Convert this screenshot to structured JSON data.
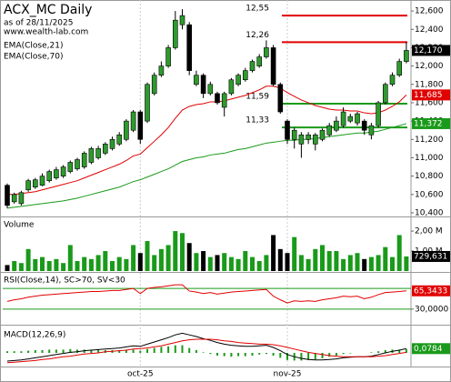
{
  "chart_data": [
    {
      "type": "candlestick",
      "title": "ACX_MC Daily",
      "subtitle": "as of 28/11/2025",
      "watermark": "www.wealth-lab.com",
      "categories": [
        null,
        null,
        null,
        null,
        null,
        null,
        null,
        null,
        null,
        null,
        null,
        null,
        null,
        null,
        null,
        null,
        null,
        null,
        null,
        "oct-25",
        null,
        null,
        null,
        null,
        null,
        null,
        null,
        null,
        null,
        null,
        null,
        null,
        null,
        null,
        null,
        null,
        null,
        null,
        null,
        null,
        "nov-25",
        null,
        null,
        null,
        null,
        null,
        null,
        null,
        null,
        null,
        null,
        null,
        null,
        null,
        null,
        null,
        null,
        null
      ],
      "open": [
        10700,
        10520,
        10500,
        10650,
        10680,
        10700,
        10750,
        10780,
        10800,
        10850,
        10880,
        10900,
        10950,
        11000,
        11050,
        11100,
        11150,
        11200,
        11300,
        11500,
        11400,
        11700,
        11900,
        12000,
        12200,
        12450,
        12450,
        11800,
        11900,
        11700,
        11700,
        11550,
        11700,
        11800,
        11850,
        11950,
        12000,
        12100,
        12200,
        11800,
        11400,
        11200,
        11150,
        11200,
        11150,
        11200,
        11250,
        11300,
        11350,
        11400,
        11380,
        11400,
        11250,
        11350,
        11600,
        11800,
        11900,
        12050
      ],
      "high": [
        10720,
        10620,
        10640,
        10770,
        10780,
        10830,
        10870,
        10900,
        10920,
        10970,
        11000,
        11070,
        11120,
        11130,
        11170,
        11230,
        11280,
        11420,
        11520,
        11520,
        11820,
        11930,
        12050,
        12230,
        12600,
        12620,
        12480,
        11950,
        11920,
        11830,
        11720,
        11720,
        11870,
        11920,
        11980,
        12070,
        12130,
        12280,
        12230,
        11820,
        11420,
        11330,
        11280,
        11280,
        11270,
        11320,
        11380,
        11450,
        11550,
        11480,
        11500,
        11420,
        11380,
        11620,
        11820,
        11930,
        12080,
        12260
      ],
      "low": [
        10450,
        10500,
        10480,
        10630,
        10660,
        10690,
        10730,
        10760,
        10780,
        10830,
        10860,
        10880,
        10930,
        10980,
        11030,
        11080,
        11130,
        11180,
        11280,
        11150,
        11380,
        11680,
        11880,
        11980,
        12180,
        12400,
        11900,
        11780,
        11650,
        11680,
        11580,
        11450,
        11680,
        11780,
        11830,
        11930,
        11980,
        12080,
        11780,
        11480,
        11150,
        11100,
        11000,
        11150,
        11080,
        11180,
        11230,
        11280,
        11330,
        11380,
        11350,
        11250,
        11200,
        11330,
        11580,
        11780,
        11880,
        12030
      ],
      "close": [
        10480,
        10600,
        10620,
        10750,
        10760,
        10800,
        10850,
        10870,
        10900,
        10950,
        10980,
        11050,
        11100,
        11100,
        11150,
        11200,
        11250,
        11400,
        11500,
        11200,
        11800,
        11900,
        12000,
        12200,
        12500,
        12550,
        11950,
        11900,
        11700,
        11800,
        11600,
        11700,
        11850,
        11900,
        11950,
        12050,
        12100,
        12200,
        11800,
        11500,
        11200,
        11300,
        11250,
        11250,
        11250,
        11300,
        11350,
        11400,
        11500,
        11450,
        11480,
        11300,
        11350,
        11600,
        11800,
        11900,
        12050,
        12170
      ],
      "close_last_label": "12,170",
      "up_color": "#2e9a2e",
      "down_color": "#000000",
      "ylim": [
        10370,
        12720
      ],
      "yticks": [
        {
          "value": 12600,
          "label": "12,600"
        },
        {
          "value": 12400,
          "label": "12,400"
        },
        {
          "value": 12200,
          "label": "12,200"
        },
        {
          "value": 12000,
          "label": "12,000"
        },
        {
          "value": 11800,
          "label": "11,800"
        },
        {
          "value": 11600,
          "label": "11,600"
        },
        {
          "value": 11400,
          "label": "11,400"
        },
        {
          "value": 11200,
          "label": "11,200"
        },
        {
          "value": 11000,
          "label": "11,000"
        },
        {
          "value": 10800,
          "label": "10,800"
        },
        {
          "value": 10600,
          "label": "10,600"
        },
        {
          "value": 10400,
          "label": "10,400"
        }
      ],
      "levels": [
        {
          "value": 12550,
          "label": "12,55",
          "color": "#e00000"
        },
        {
          "value": 12260,
          "label": "12,26",
          "color": "#e00000"
        },
        {
          "value": 11590,
          "label": "11,59",
          "color": "#1a9a1a"
        },
        {
          "value": 11330,
          "label": "11,33",
          "color": "#1a9a1a"
        }
      ],
      "series": [
        {
          "name": "EMA(Close,21)",
          "color": "#e00000",
          "last_label": "11,685",
          "values": [
            10600,
            10600,
            10610,
            10620,
            10630,
            10650,
            10670,
            10690,
            10710,
            10730,
            10750,
            10780,
            10810,
            10840,
            10870,
            10900,
            10930,
            10970,
            11020,
            11040,
            11110,
            11180,
            11250,
            11330,
            11430,
            11520,
            11560,
            11580,
            11590,
            11610,
            11610,
            11620,
            11640,
            11660,
            11680,
            11710,
            11740,
            11780,
            11780,
            11760,
            11710,
            11670,
            11630,
            11600,
            11570,
            11550,
            11530,
            11520,
            11520,
            11510,
            11510,
            11490,
            11480,
            11490,
            11520,
            11560,
            11610,
            11685
          ]
        },
        {
          "name": "EMA(Close,70)",
          "color": "#1a9a1a",
          "last_label": "11,372",
          "values": [
            10450,
            10460,
            10470,
            10480,
            10490,
            10500,
            10510,
            10520,
            10530,
            10545,
            10560,
            10580,
            10600,
            10620,
            10640,
            10660,
            10680,
            10710,
            10740,
            10760,
            10790,
            10820,
            10850,
            10880,
            10920,
            10960,
            10980,
            11000,
            11010,
            11030,
            11040,
            11050,
            11070,
            11090,
            11100,
            11120,
            11140,
            11160,
            11170,
            11180,
            11190,
            11190,
            11200,
            11200,
            11210,
            11220,
            11230,
            11240,
            11250,
            11260,
            11270,
            11270,
            11280,
            11290,
            11310,
            11330,
            11350,
            11372
          ]
        }
      ]
    },
    {
      "type": "bar",
      "title": "Volume",
      "color": "#1a9a1a",
      "values": [
        300000,
        500000,
        400000,
        1100000,
        600000,
        700000,
        500000,
        600000,
        400000,
        1300000,
        500000,
        700000,
        600000,
        800000,
        1000000,
        500000,
        700000,
        600000,
        1300000,
        900000,
        1500000,
        800000,
        1100000,
        1300000,
        2000000,
        1900000,
        1400000,
        900000,
        1000000,
        700000,
        800000,
        900000,
        700000,
        600000,
        1000000,
        700000,
        500000,
        800000,
        1800000,
        1100000,
        900000,
        1700000,
        800000,
        600000,
        1100000,
        1300000,
        1000000,
        1000000,
        600000,
        800000,
        900000,
        600000,
        700000,
        800000,
        1200000,
        700000,
        1800000,
        729631
      ],
      "last_label": "729,631",
      "ylim": [
        0,
        2640000
      ],
      "yticks": [
        {
          "value": 2000000,
          "label": "2,00 M"
        },
        {
          "value": 1000000,
          "label": "1,00 M"
        }
      ]
    },
    {
      "type": "line",
      "title": "RSI(Close,14), SC>70, SV<30",
      "color": "#e00000",
      "level_color": "#1a9a1a",
      "values": [
        45,
        48,
        50,
        53,
        55,
        57,
        58,
        59,
        60,
        61,
        62,
        63,
        64,
        64,
        65,
        66,
        66,
        68,
        70,
        60,
        70,
        72,
        73,
        75,
        77,
        77,
        65,
        63,
        60,
        62,
        59,
        61,
        63,
        64,
        65,
        66,
        67,
        68,
        55,
        48,
        42,
        46,
        45,
        46,
        45,
        48,
        50,
        52,
        55,
        54,
        55,
        50,
        53,
        58,
        62,
        63,
        64,
        65.3433
      ],
      "last_label": "65,3433",
      "levels": [
        70,
        30
      ],
      "ylim": [
        0,
        100
      ],
      "yticks": [
        {
          "value": 30,
          "label": "30,0000"
        }
      ]
    },
    {
      "type": "macd",
      "title": "MACD(12,26,9)",
      "hist_color": "#1a9a1a",
      "ylim": [
        -0.25,
        0.5
      ],
      "histogram": [
        0.03,
        0.03,
        0.03,
        0.04,
        0.05,
        0.05,
        0.06,
        0.06,
        0.06,
        0.07,
        0.06,
        0.06,
        0.06,
        0.06,
        0.05,
        0.05,
        0.05,
        0.06,
        0.06,
        0.04,
        0.07,
        0.09,
        0.11,
        0.12,
        0.14,
        0.14,
        0.09,
        0.05,
        0.01,
        -0.02,
        -0.05,
        -0.06,
        -0.07,
        -0.06,
        -0.06,
        -0.05,
        -0.03,
        -0.02,
        -0.05,
        -0.09,
        -0.13,
        -0.14,
        -0.14,
        -0.13,
        -0.12,
        -0.1,
        -0.07,
        -0.05,
        -0.02,
        -0.01,
        0,
        0,
        0.01,
        0.03,
        0.05,
        0.06,
        0.06,
        0.0684
      ],
      "series": [
        {
          "color": "#000000",
          "last_label": "0,0784",
          "values": [
            -0.15,
            -0.14,
            -0.13,
            -0.11,
            -0.09,
            -0.07,
            -0.05,
            -0.03,
            -0.01,
            0.01,
            0.02,
            0.04,
            0.05,
            0.06,
            0.07,
            0.08,
            0.09,
            0.11,
            0.13,
            0.12,
            0.16,
            0.2,
            0.24,
            0.28,
            0.33,
            0.36,
            0.33,
            0.3,
            0.26,
            0.23,
            0.19,
            0.16,
            0.14,
            0.13,
            0.12,
            0.12,
            0.13,
            0.14,
            0.1,
            0.04,
            -0.03,
            -0.07,
            -0.1,
            -0.12,
            -0.13,
            -0.13,
            -0.12,
            -0.11,
            -0.09,
            -0.08,
            -0.07,
            -0.07,
            -0.06,
            -0.03,
            0,
            0.03,
            0.05,
            0.0784
          ]
        },
        {
          "color": "#e00000",
          "values": [
            -0.18,
            -0.17,
            -0.16,
            -0.15,
            -0.14,
            -0.12,
            -0.11,
            -0.09,
            -0.07,
            -0.06,
            -0.04,
            -0.02,
            -0.01,
            0,
            0.02,
            0.03,
            0.04,
            0.05,
            0.07,
            0.08,
            0.09,
            0.11,
            0.13,
            0.16,
            0.19,
            0.22,
            0.24,
            0.25,
            0.25,
            0.25,
            0.24,
            0.22,
            0.21,
            0.19,
            0.18,
            0.17,
            0.16,
            0.16,
            0.15,
            0.13,
            0.1,
            0.07,
            0.04,
            0.01,
            -0.01,
            -0.03,
            -0.05,
            -0.06,
            -0.07,
            -0.07,
            -0.07,
            -0.07,
            -0.07,
            -0.06,
            -0.05,
            -0.03,
            -0.01,
            0.01
          ]
        }
      ]
    }
  ]
}
